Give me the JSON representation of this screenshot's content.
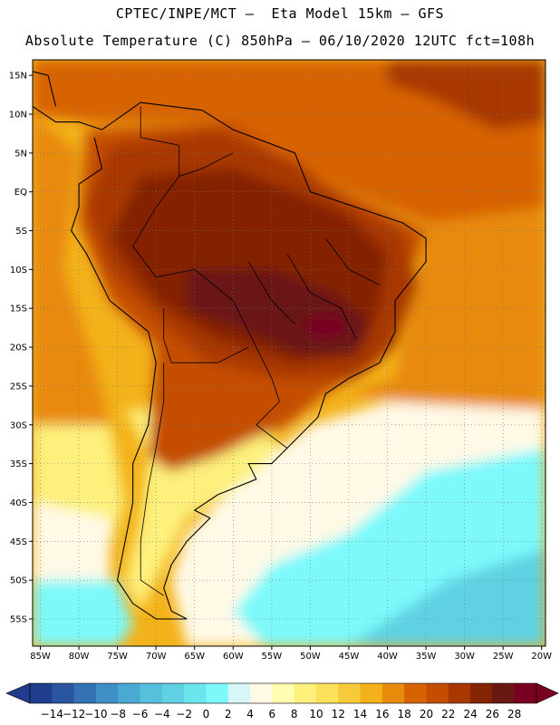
{
  "header": {
    "title_line1": "CPTEC/INPE/MCT –  Eta Model 15km – GFS",
    "title_line2": "Absolute Temperature (C) 850hPa – 06/10/2020 12UTC fct=108h"
  },
  "map": {
    "lon_range": [
      -86,
      -19.5
    ],
    "lat_range": [
      -58.5,
      17
    ],
    "lat_ticks": [
      {
        "value": 15,
        "label": "15N"
      },
      {
        "value": 10,
        "label": "10N"
      },
      {
        "value": 5,
        "label": "5N"
      },
      {
        "value": 0,
        "label": "EQ"
      },
      {
        "value": -5,
        "label": "5S"
      },
      {
        "value": -10,
        "label": "10S"
      },
      {
        "value": -15,
        "label": "15S"
      },
      {
        "value": -20,
        "label": "20S"
      },
      {
        "value": -25,
        "label": "25S"
      },
      {
        "value": -30,
        "label": "30S"
      },
      {
        "value": -35,
        "label": "35S"
      },
      {
        "value": -40,
        "label": "40S"
      },
      {
        "value": -45,
        "label": "45S"
      },
      {
        "value": -50,
        "label": "50S"
      },
      {
        "value": -55,
        "label": "55S"
      }
    ],
    "lon_ticks": [
      {
        "value": -85,
        "label": "85W"
      },
      {
        "value": -80,
        "label": "80W"
      },
      {
        "value": -75,
        "label": "75W"
      },
      {
        "value": -70,
        "label": "70W"
      },
      {
        "value": -65,
        "label": "65W"
      },
      {
        "value": -60,
        "label": "60W"
      },
      {
        "value": -55,
        "label": "55W"
      },
      {
        "value": -50,
        "label": "50W"
      },
      {
        "value": -45,
        "label": "45W"
      },
      {
        "value": -40,
        "label": "40W"
      },
      {
        "value": -35,
        "label": "35W"
      },
      {
        "value": -30,
        "label": "30W"
      },
      {
        "value": -25,
        "label": "25W"
      },
      {
        "value": -20,
        "label": "20W"
      }
    ],
    "temperature_zones": [
      {
        "name": "ocean-north-warm",
        "temp": 18,
        "lonlat": [
          [
            -86,
            17
          ],
          [
            -19.5,
            17
          ],
          [
            -19.5,
            -2
          ],
          [
            -35,
            -4
          ],
          [
            -50,
            2
          ],
          [
            -60,
            9
          ],
          [
            -78,
            9
          ],
          [
            -86,
            10
          ]
        ]
      },
      {
        "name": "caribbean-hot",
        "temp": 22,
        "lonlat": [
          [
            -40,
            17
          ],
          [
            -19.5,
            17
          ],
          [
            -19.5,
            9
          ],
          [
            -26,
            8
          ],
          [
            -34,
            12
          ],
          [
            -40,
            14
          ]
        ]
      },
      {
        "name": "pacific-subtropical",
        "temp": 16,
        "lonlat": [
          [
            -86,
            10
          ],
          [
            -80,
            5
          ],
          [
            -82,
            -10
          ],
          [
            -78,
            -22
          ],
          [
            -76,
            -30
          ],
          [
            -86,
            -30
          ]
        ]
      },
      {
        "name": "atlantic-subtropical",
        "temp": 16,
        "lonlat": [
          [
            -19.5,
            -2
          ],
          [
            -35,
            -4
          ],
          [
            -39,
            -24
          ],
          [
            -45,
            -26
          ],
          [
            -19.5,
            -30
          ]
        ]
      },
      {
        "name": "south-pacific-mild",
        "temp": 8,
        "lonlat": [
          [
            -86,
            -30
          ],
          [
            -76,
            -30
          ],
          [
            -74,
            -40
          ],
          [
            -76,
            -46
          ],
          [
            -86,
            -46
          ]
        ]
      },
      {
        "name": "south-pacific-cool",
        "temp": 4,
        "lonlat": [
          [
            -86,
            -40
          ],
          [
            -76,
            -42
          ],
          [
            -76,
            -50
          ],
          [
            -86,
            -50
          ]
        ]
      },
      {
        "name": "south-pacific-cold",
        "temp": 0,
        "lonlat": [
          [
            -86,
            -50
          ],
          [
            -75,
            -50
          ],
          [
            -73,
            -56
          ],
          [
            -75,
            -58.5
          ],
          [
            -86,
            -58.5
          ]
        ]
      },
      {
        "name": "south-atlantic-cool",
        "temp": 4,
        "lonlat": [
          [
            -19.5,
            -28
          ],
          [
            -40,
            -27
          ],
          [
            -50,
            -30
          ],
          [
            -58,
            -36
          ],
          [
            -66,
            -44
          ],
          [
            -68,
            -50
          ],
          [
            -66,
            -58.5
          ],
          [
            -19.5,
            -58.5
          ]
        ]
      },
      {
        "name": "south-atlantic-cold",
        "temp": 0,
        "lonlat": [
          [
            -19.5,
            -33
          ],
          [
            -35,
            -36
          ],
          [
            -45,
            -44
          ],
          [
            -55,
            -48
          ],
          [
            -60,
            -54
          ],
          [
            -56,
            -58.5
          ],
          [
            -19.5,
            -58.5
          ]
        ]
      },
      {
        "name": "south-atlantic-colder",
        "temp": -4,
        "lonlat": [
          [
            -19.5,
            -46
          ],
          [
            -32,
            -50
          ],
          [
            -45,
            -58.5
          ],
          [
            -19.5,
            -58.5
          ]
        ]
      },
      {
        "name": "argentina-mild",
        "temp": 8,
        "lonlat": [
          [
            -74,
            -28
          ],
          [
            -58,
            -28
          ],
          [
            -54,
            -33
          ],
          [
            -58,
            -37
          ],
          [
            -66,
            -42
          ],
          [
            -70,
            -50
          ],
          [
            -72,
            -54
          ],
          [
            -74,
            -50
          ],
          [
            -72,
            -42
          ],
          [
            -71,
            -34
          ]
        ]
      },
      {
        "name": "continent-warm",
        "temp": 20,
        "lonlat": [
          [
            -79,
            8
          ],
          [
            -60,
            9
          ],
          [
            -50,
            2
          ],
          [
            -35,
            -5
          ],
          [
            -39,
            -16
          ],
          [
            -41,
            -22
          ],
          [
            -48,
            -26
          ],
          [
            -53,
            -30
          ],
          [
            -58,
            -32
          ],
          [
            -62,
            -34
          ],
          [
            -68,
            -36
          ],
          [
            -71,
            -34
          ],
          [
            -70,
            -20
          ],
          [
            -76,
            -14
          ],
          [
            -80,
            -4
          ]
        ]
      },
      {
        "name": "continent-hot",
        "temp": 22,
        "lonlat": [
          [
            -76,
            6
          ],
          [
            -62,
            8
          ],
          [
            -52,
            4
          ],
          [
            -46,
            -1
          ],
          [
            -38,
            -5
          ],
          [
            -36,
            -12
          ],
          [
            -39,
            -20
          ],
          [
            -44,
            -24
          ],
          [
            -54,
            -24
          ],
          [
            -63,
            -22
          ],
          [
            -68,
            -18
          ],
          [
            -76,
            -10
          ],
          [
            -79,
            -2
          ]
        ]
      },
      {
        "name": "amazon-hotter",
        "temp": 24,
        "lonlat": [
          [
            -72,
            2
          ],
          [
            -60,
            3
          ],
          [
            -52,
            0
          ],
          [
            -45,
            -3
          ],
          [
            -40,
            -8
          ],
          [
            -41,
            -15
          ],
          [
            -44,
            -21
          ],
          [
            -52,
            -22
          ],
          [
            -62,
            -19
          ],
          [
            -70,
            -14
          ],
          [
            -76,
            -6
          ]
        ]
      },
      {
        "name": "central-brazil-hottest",
        "temp": 26,
        "lonlat": [
          [
            -66,
            -10
          ],
          [
            -55,
            -10
          ],
          [
            -47,
            -13
          ],
          [
            -42,
            -17
          ],
          [
            -44,
            -21
          ],
          [
            -51,
            -21
          ],
          [
            -58,
            -18
          ],
          [
            -66,
            -15
          ]
        ]
      },
      {
        "name": "core-extreme",
        "temp": 28,
        "lonlat": [
          [
            -50,
            -16
          ],
          [
            -46,
            -16
          ],
          [
            -45,
            -18
          ],
          [
            -48,
            -19
          ],
          [
            -51,
            -18
          ]
        ]
      }
    ],
    "coastlines": [
      {
        "name": "south-america",
        "lonlat": [
          [
            -77,
            8
          ],
          [
            -72,
            11.5
          ],
          [
            -64,
            10.5
          ],
          [
            -60,
            8
          ],
          [
            -52,
            5
          ],
          [
            -50,
            0
          ],
          [
            -44,
            -2
          ],
          [
            -38,
            -4
          ],
          [
            -35,
            -6
          ],
          [
            -35,
            -9
          ],
          [
            -39,
            -14
          ],
          [
            -39,
            -18
          ],
          [
            -41,
            -22
          ],
          [
            -45,
            -24
          ],
          [
            -48,
            -26
          ],
          [
            -49,
            -29
          ],
          [
            -53,
            -33
          ],
          [
            -55,
            -35
          ],
          [
            -58,
            -35
          ],
          [
            -57,
            -37
          ],
          [
            -62,
            -39
          ],
          [
            -65,
            -41
          ],
          [
            -63,
            -42
          ],
          [
            -66,
            -45
          ],
          [
            -68,
            -48
          ],
          [
            -69,
            -51
          ],
          [
            -68,
            -54
          ],
          [
            -66,
            -55
          ],
          [
            -70,
            -55
          ],
          [
            -73,
            -53
          ],
          [
            -75,
            -50
          ],
          [
            -74,
            -45
          ],
          [
            -73,
            -40
          ],
          [
            -73,
            -35
          ],
          [
            -71,
            -30
          ],
          [
            -70,
            -22
          ],
          [
            -71,
            -18
          ],
          [
            -76,
            -14
          ],
          [
            -79,
            -8
          ],
          [
            -81,
            -5
          ],
          [
            -80,
            -2
          ],
          [
            -80,
            1
          ],
          [
            -77,
            3
          ],
          [
            -78,
            7
          ]
        ]
      },
      {
        "name": "central-america",
        "lonlat": [
          [
            -77,
            8
          ],
          [
            -80,
            9
          ],
          [
            -83,
            9
          ],
          [
            -86,
            11
          ]
        ]
      },
      {
        "name": "caribbean-coast",
        "lonlat": [
          [
            -86,
            15.5
          ],
          [
            -84,
            15
          ],
          [
            -83,
            11
          ]
        ]
      }
    ],
    "boundaries": [
      {
        "name": "brazil",
        "lonlat": [
          [
            -60,
            5
          ],
          [
            -64,
            3
          ],
          [
            -67,
            2
          ],
          [
            -70,
            -2
          ],
          [
            -73,
            -7
          ],
          [
            -70,
            -11
          ],
          [
            -65,
            -10
          ],
          [
            -60,
            -14
          ],
          [
            -58,
            -18
          ],
          [
            -55,
            -24
          ],
          [
            -54,
            -27
          ],
          [
            -57,
            -30
          ],
          [
            -53,
            -33
          ]
        ]
      },
      {
        "name": "peru-bolivia",
        "lonlat": [
          [
            -69,
            -15
          ],
          [
            -69,
            -19
          ],
          [
            -68,
            -22
          ],
          [
            -62,
            -22
          ],
          [
            -58,
            -20
          ]
        ]
      },
      {
        "name": "argentina-chile",
        "lonlat": [
          [
            -69,
            -22
          ],
          [
            -69,
            -27
          ],
          [
            -70,
            -33
          ],
          [
            -71,
            -38
          ],
          [
            -72,
            -45
          ],
          [
            -72,
            -50
          ],
          [
            -69,
            -52
          ]
        ]
      },
      {
        "name": "colombia-venezuela",
        "lonlat": [
          [
            -72,
            11
          ],
          [
            -72,
            7
          ],
          [
            -67,
            6
          ],
          [
            -67,
            2
          ]
        ]
      },
      {
        "name": "brazil-states-1",
        "lonlat": [
          [
            -53,
            -8
          ],
          [
            -50,
            -13
          ],
          [
            -46,
            -15
          ],
          [
            -44,
            -19
          ]
        ]
      },
      {
        "name": "brazil-states-2",
        "lonlat": [
          [
            -58,
            -9
          ],
          [
            -55,
            -14
          ],
          [
            -52,
            -17
          ]
        ]
      },
      {
        "name": "brazil-states-3",
        "lonlat": [
          [
            -48,
            -6
          ],
          [
            -45,
            -10
          ],
          [
            -41,
            -12
          ]
        ]
      }
    ]
  },
  "colorbar": {
    "labels": [
      "-14",
      "-12",
      "-10",
      "-8",
      "-6",
      "-4",
      "-2",
      "0",
      "2",
      "4",
      "6",
      "8",
      "10",
      "12",
      "14",
      "16",
      "18",
      "20",
      "22",
      "24",
      "26",
      "28"
    ],
    "colors": [
      "#1f3d8c",
      "#2a55a0",
      "#3472b4",
      "#3f8fc6",
      "#4aa9d3",
      "#55bfdc",
      "#5fd1e2",
      "#6ae6ec",
      "#7df9fb",
      "#d7f6f8",
      "#fff9e6",
      "#fffdb0",
      "#fdf07c",
      "#fbe25a",
      "#f7ca3a",
      "#f3b21a",
      "#e88a0a",
      "#d76200",
      "#c44d00",
      "#a83800",
      "#842400",
      "#6a1814",
      "#7a0022"
    ],
    "under_color": "#1f3d8c",
    "over_color": "#7a0022"
  }
}
